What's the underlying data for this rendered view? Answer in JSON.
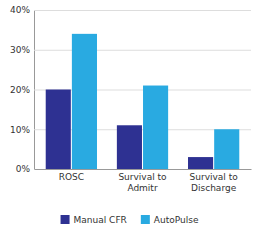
{
  "chart_data": {
    "type": "bar",
    "categories": [
      "ROSC",
      "Survival to\nAdmitr",
      "Survival to\nDischarge"
    ],
    "series": [
      {
        "name": "Manual CFR",
        "color": "#2e3192",
        "values": [
          20,
          11,
          3
        ]
      },
      {
        "name": "AutoPulse",
        "color": "#29aae1",
        "values": [
          34,
          21,
          10
        ]
      }
    ],
    "ylim": [
      0,
      40
    ],
    "yticks": [
      {
        "value": 0,
        "label": "0%"
      },
      {
        "value": 10,
        "label": "10%"
      },
      {
        "value": 20,
        "label": "20%"
      },
      {
        "value": 30,
        "label": "30%"
      },
      {
        "value": 40,
        "label": "40%"
      }
    ],
    "grid": true,
    "legend": "bottom"
  }
}
